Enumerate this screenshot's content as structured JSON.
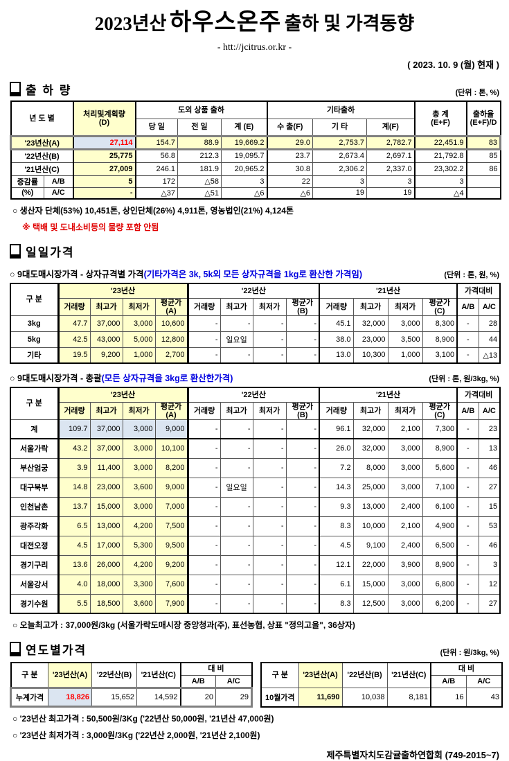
{
  "title": {
    "year": "2023년산",
    "product": "하우스온주",
    "suffix": "출하 및 가격동향",
    "url": "- htt://jcitrus.or.kr -",
    "date": "( 2023. 10. 9 (월) 현재 )"
  },
  "shipment": {
    "section": "출 하 량",
    "unit": "(단위 : 톤, %)",
    "header": {
      "col_year": "년 도 별",
      "col_d": "처리및계획량\n(D)",
      "grp_export": "도외 상품 출하",
      "sub_export": [
        "당 일",
        "전 일",
        "계 (E)"
      ],
      "grp_etc": "기타출하",
      "sub_etc": [
        "수 출(F)",
        "기 타",
        "계(F)"
      ],
      "col_total": "총   계\n(E+F)",
      "col_rate": "출하율\n(E+F)/D"
    },
    "rows": [
      {
        "cls": "hlyellow grayline",
        "cells": [
          "'23년산(A)",
          "27,114",
          "154.7",
          "88.9",
          "19,669.2",
          "29.0",
          "2,753.7",
          "2,782.7",
          "22,451.9",
          "83"
        ]
      },
      {
        "cells": [
          "'22년산(B)",
          "25,775",
          "56.8",
          "212.3",
          "19,095.7",
          "23.7",
          "2,673.4",
          "2,697.1",
          "21,792.8",
          "85"
        ]
      },
      {
        "cells": [
          "'21년산(C)",
          "27,009",
          "246.1",
          "181.9",
          "20,965.2",
          "30.8",
          "2,306.2",
          "2,337.0",
          "23,302.2",
          "86"
        ]
      }
    ],
    "change_rows": [
      {
        "cells": [
          "증감률",
          "A/B",
          "5",
          "172",
          "△58",
          "3",
          "22",
          "3",
          "3",
          "3",
          ""
        ]
      },
      {
        "cells": [
          "(%)",
          "A/C",
          "-",
          "△37",
          "△51",
          "△6",
          "△6",
          "19",
          "19",
          "△4",
          ""
        ]
      }
    ],
    "note1": "○ 생산자 단체(53%) 10,451톤, 상인단체(26%) 4,911톤, 영농법인(21%) 4,124톤",
    "note2": "※ 택배 및 도내소비등의 물량 포함 안됨"
  },
  "daily": {
    "section": "일일가격",
    "price_header": {
      "col": "구   분",
      "y23": "'23년산",
      "y22": "'22년산",
      "y21": "'21년산",
      "ratio": "가격대비",
      "sub23": [
        "거래량",
        "최고가",
        "최저가",
        "평균가(A)"
      ],
      "sub22": [
        "거래량",
        "최고가",
        "최저가",
        "평균가(B)"
      ],
      "sub21": [
        "거래량",
        "최고가",
        "최저가",
        "평균가(C)"
      ],
      "ab": "A/B",
      "ac": "A/C"
    },
    "by_size": {
      "caption": "○ 9대도매시장가격 - 상자규격별 가격",
      "caption_blue": "(기타가격은 3k, 5k외 모든 상자규격을 1kg로 환산한 가격임)",
      "unit": "(단위 : 톤, 원, %)",
      "rows": [
        {
          "cells": [
            "3kg",
            "47.7",
            "37,000",
            "3,000",
            "10,600",
            "-",
            "-",
            "-",
            "-",
            "45.1",
            "32,000",
            "3,000",
            "8,300",
            "-",
            "28"
          ]
        },
        {
          "cells": [
            "5kg",
            "42.5",
            "43,000",
            "5,000",
            "12,800",
            "-",
            "일요일",
            "-",
            "-",
            "38.0",
            "23,000",
            "3,500",
            "8,900",
            "-",
            "44"
          ]
        },
        {
          "cells": [
            "기타",
            "19.5",
            "9,200",
            "1,000",
            "2,700",
            "-",
            "-",
            "-",
            "-",
            "13.0",
            "10,300",
            "1,000",
            "3,100",
            "-",
            "△13"
          ]
        }
      ]
    },
    "overall": {
      "caption": "○ 9대도매시장가격 - 총괄",
      "caption_blue": "(모든 상자규격을 3kg로 환산한가격)",
      "unit": "(단위 : 톤, 원/3kg, %)",
      "rows": [
        {
          "cls": "total",
          "cells": [
            "계",
            "109.7",
            "37,000",
            "3,000",
            "9,000",
            "-",
            "-",
            "-",
            "-",
            "96.1",
            "32,000",
            "2,100",
            "7,300",
            "-",
            "23"
          ]
        },
        {
          "cells": [
            "서울가락",
            "43.2",
            "37,000",
            "3,000",
            "10,100",
            "-",
            "-",
            "-",
            "-",
            "26.0",
            "32,000",
            "3,000",
            "8,900",
            "-",
            "13"
          ]
        },
        {
          "cells": [
            "부산엄궁",
            "3.9",
            "11,400",
            "3,000",
            "8,200",
            "-",
            "-",
            "-",
            "-",
            "7.2",
            "8,000",
            "3,000",
            "5,600",
            "-",
            "46"
          ]
        },
        {
          "cells": [
            "대구북부",
            "14.8",
            "23,000",
            "3,600",
            "9,000",
            "-",
            "일요일",
            "-",
            "-",
            "14.3",
            "25,000",
            "3,000",
            "7,100",
            "-",
            "27"
          ]
        },
        {
          "cells": [
            "인천남촌",
            "13.7",
            "15,000",
            "3,000",
            "7,000",
            "-",
            "-",
            "-",
            "-",
            "9.3",
            "13,000",
            "2,400",
            "6,100",
            "-",
            "15"
          ]
        },
        {
          "cells": [
            "광주각화",
            "6.5",
            "13,000",
            "4,200",
            "7,500",
            "-",
            "-",
            "-",
            "-",
            "8.3",
            "10,000",
            "2,100",
            "4,900",
            "-",
            "53"
          ]
        },
        {
          "cells": [
            "대전오정",
            "4.5",
            "17,000",
            "5,300",
            "9,500",
            "-",
            "-",
            "-",
            "-",
            "4.5",
            "9,100",
            "2,400",
            "6,500",
            "-",
            "46"
          ]
        },
        {
          "cells": [
            "경기구리",
            "13.6",
            "26,000",
            "4,200",
            "9,200",
            "-",
            "-",
            "-",
            "-",
            "12.1",
            "22,000",
            "3,900",
            "8,900",
            "-",
            "3"
          ]
        },
        {
          "cells": [
            "서울강서",
            "4.0",
            "18,000",
            "3,300",
            "7,600",
            "-",
            "-",
            "-",
            "-",
            "6.1",
            "15,000",
            "3,000",
            "6,800",
            "-",
            "12"
          ]
        },
        {
          "cells": [
            "경기수원",
            "5.5",
            "18,500",
            "3,600",
            "7,900",
            "-",
            "-",
            "-",
            "-",
            "8.3",
            "12,500",
            "3,000",
            "6,200",
            "-",
            "27"
          ]
        }
      ]
    },
    "note": "○ 오늘최고가 : 37,000원/3kg (서울가락도매시장 중앙청과(주), 표선농협, 상표 \"정의고을\", 36상자)"
  },
  "yearly": {
    "section": "연도별가격",
    "unit": "(단위 : 원/3kg, %)",
    "header": {
      "col": "구   분",
      "y23": "'23년산(A)",
      "y22": "'22년산(B)",
      "y21": "'21년산(C)",
      "ratio": "대   비",
      "ab": "A/B",
      "ac": "A/C"
    },
    "left_rows": [
      {
        "cls": "grayline",
        "cells": [
          "누계가격",
          "18,826",
          "15,652",
          "14,592",
          "20",
          "29"
        ]
      }
    ],
    "right_rows": [
      {
        "cells": [
          "10월가격",
          "11,690",
          "10,038",
          "8,181",
          "16",
          "43"
        ]
      }
    ],
    "note1": "○ '23년산 최고가격 : 50,500원/3Kg ('22년산 50,000원, '21년산 47,000원)",
    "note2": "○ '23년산 최저가격 :   3,000원/3Kg ('22년산  2,000원, '21년산  2,100원)"
  },
  "footer": "제주특별자치도감귤출하연합회 (749-2015~7)"
}
